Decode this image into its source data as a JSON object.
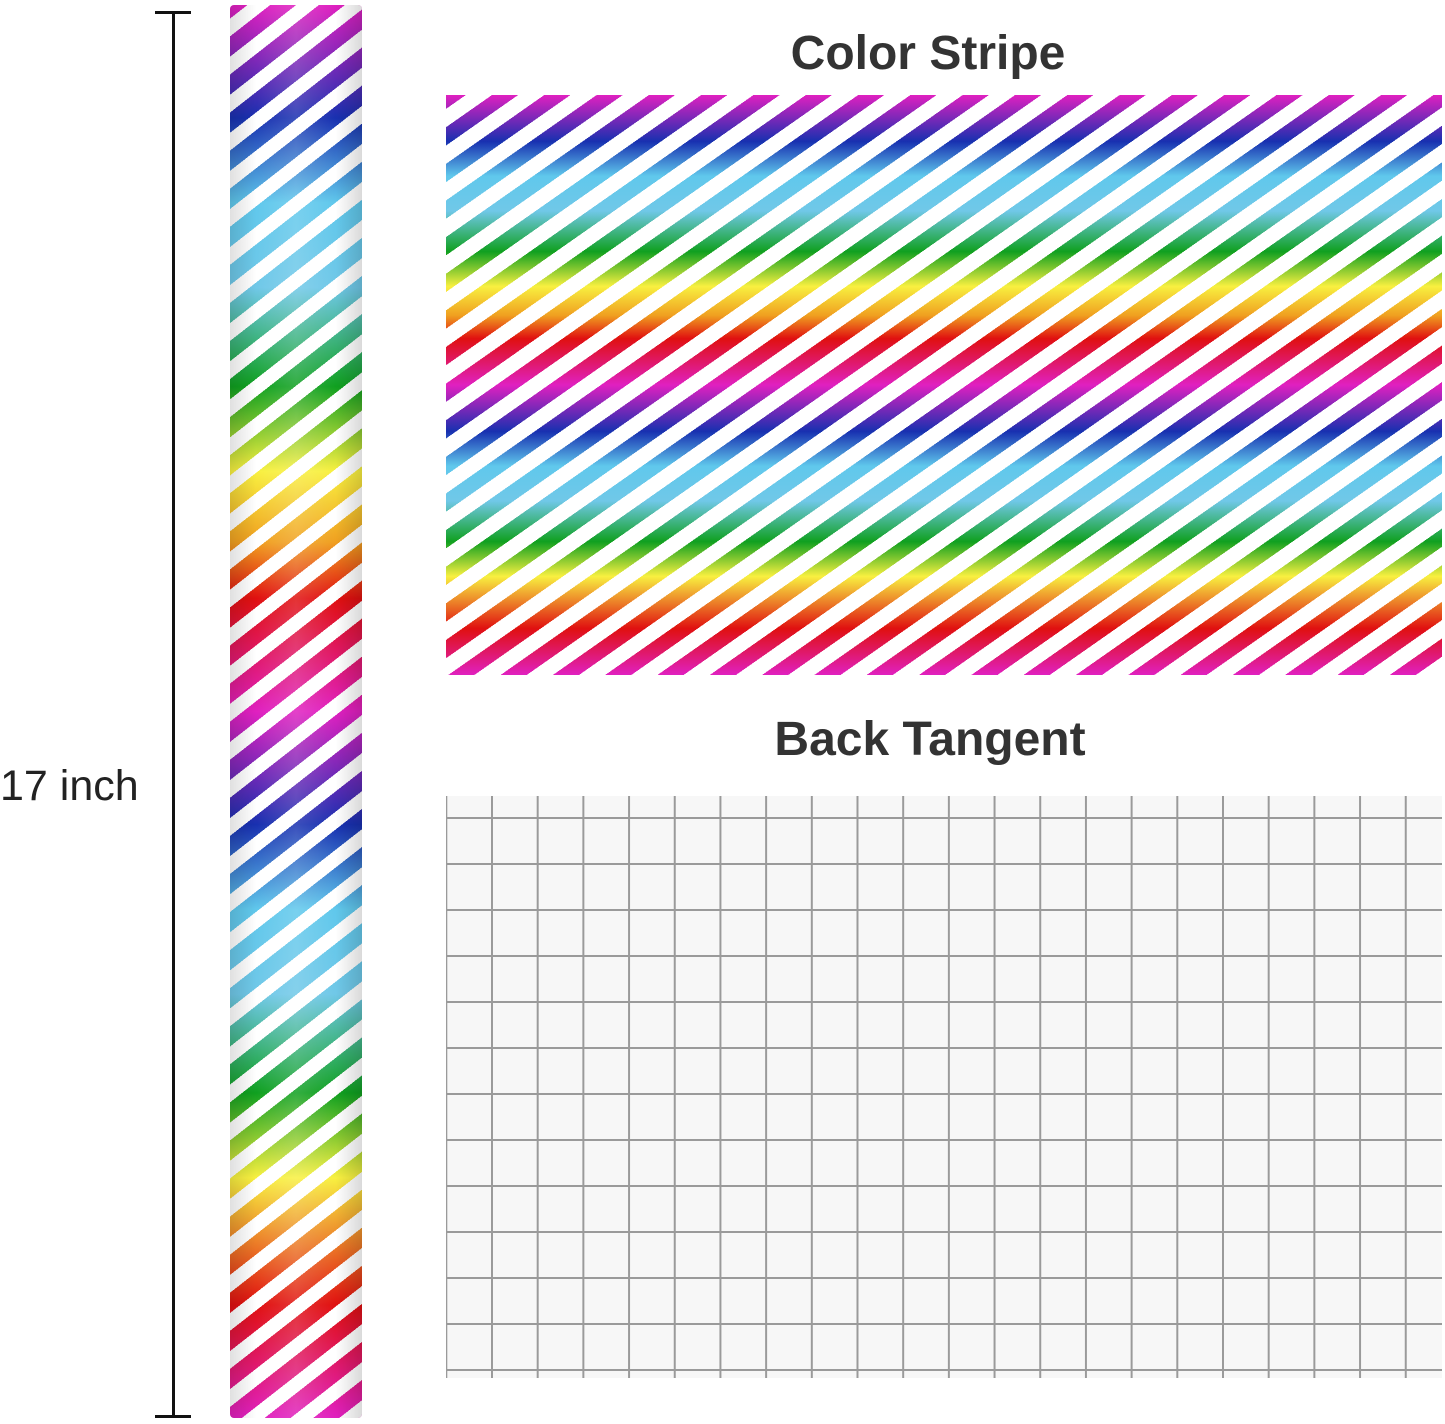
{
  "measurement": {
    "label": "17 inch"
  },
  "panels": {
    "front": {
      "title": "Color Stripe"
    },
    "back": {
      "title": "Back Tangent"
    }
  },
  "colors": {
    "magenta": "#e020c0",
    "blue": "#1830b0",
    "cyan": "#60c8ec",
    "green": "#10a020",
    "yellow": "#f8f040",
    "red": "#e01010",
    "grid_line": "#9a9a9a"
  }
}
